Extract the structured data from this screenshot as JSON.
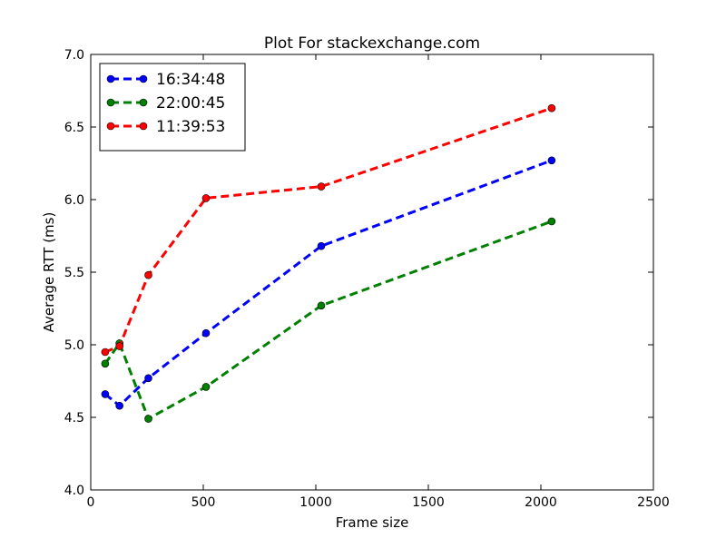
{
  "chart_data": {
    "type": "line",
    "title": "Plot For stackexchange.com",
    "xlabel": "Frame size",
    "ylabel": "Average RTT (ms)",
    "xlim": [
      0,
      2500
    ],
    "ylim": [
      4.0,
      7.0
    ],
    "xticks": [
      0,
      500,
      1000,
      1500,
      2000,
      2500
    ],
    "yticks": [
      4.0,
      4.5,
      5.0,
      5.5,
      6.0,
      6.5,
      7.0
    ],
    "grid": false,
    "legend_position": "top-left",
    "x": [
      64,
      128,
      256,
      512,
      1024,
      2048
    ],
    "series": [
      {
        "name": "16:34:48",
        "color": "#0000ff",
        "line_style": "dashed",
        "marker": "circle",
        "values": [
          4.66,
          4.58,
          4.77,
          5.08,
          5.68,
          6.27
        ]
      },
      {
        "name": "22:00:45",
        "color": "#008000",
        "line_style": "dashed",
        "marker": "circle",
        "values": [
          4.87,
          5.01,
          4.49,
          4.71,
          5.27,
          5.85
        ]
      },
      {
        "name": "11:39:53",
        "color": "#ff0000",
        "line_style": "dashed",
        "marker": "circle",
        "values": [
          4.95,
          4.99,
          5.48,
          6.01,
          6.09,
          6.63
        ]
      }
    ]
  }
}
